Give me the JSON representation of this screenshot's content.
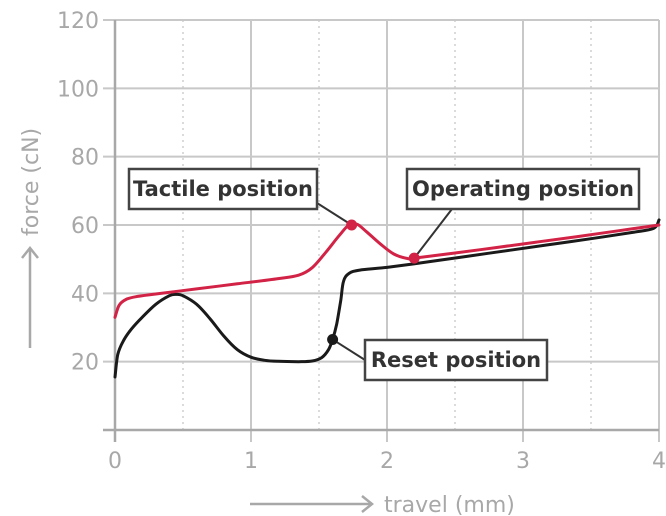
{
  "chart_data": {
    "type": "line",
    "xlabel": "travel (mm)",
    "ylabel": "force (cN)",
    "xlim": [
      0,
      4
    ],
    "ylim": [
      0,
      120
    ],
    "x_ticks": [
      0,
      1,
      2,
      3,
      4
    ],
    "y_ticks": [
      20,
      40,
      60,
      80,
      100,
      120
    ],
    "x_minor_grid": [
      0.5,
      1.5,
      2.5,
      3.5
    ],
    "grid": true,
    "legend": "none",
    "series": [
      {
        "id": "press",
        "color": "#d22346",
        "points": [
          [
            0.0,
            33
          ],
          [
            0.03,
            36.5
          ],
          [
            0.08,
            38.2
          ],
          [
            0.15,
            39
          ],
          [
            0.3,
            39.8
          ],
          [
            0.6,
            41.3
          ],
          [
            0.9,
            42.8
          ],
          [
            1.2,
            44.3
          ],
          [
            1.35,
            45.3
          ],
          [
            1.45,
            47.5
          ],
          [
            1.55,
            52
          ],
          [
            1.65,
            57
          ],
          [
            1.72,
            60
          ],
          [
            1.78,
            60.2
          ],
          [
            1.85,
            58
          ],
          [
            1.95,
            54.5
          ],
          [
            2.05,
            51.5
          ],
          [
            2.15,
            50.2
          ],
          [
            2.2,
            50.3
          ],
          [
            2.5,
            51.8
          ],
          [
            2.8,
            53.4
          ],
          [
            3.1,
            55
          ],
          [
            3.4,
            56.6
          ],
          [
            3.7,
            58.3
          ],
          [
            4.0,
            60
          ]
        ]
      },
      {
        "id": "release",
        "color": "#1a1a1a",
        "points": [
          [
            0.0,
            15.5
          ],
          [
            0.02,
            22
          ],
          [
            0.06,
            26
          ],
          [
            0.12,
            29.5
          ],
          [
            0.2,
            33
          ],
          [
            0.3,
            36.8
          ],
          [
            0.4,
            39.3
          ],
          [
            0.45,
            39.7
          ],
          [
            0.5,
            39.3
          ],
          [
            0.6,
            36.8
          ],
          [
            0.7,
            32.5
          ],
          [
            0.8,
            27.5
          ],
          [
            0.9,
            23.5
          ],
          [
            1.0,
            21.3
          ],
          [
            1.1,
            20.4
          ],
          [
            1.2,
            20.1
          ],
          [
            1.35,
            20
          ],
          [
            1.45,
            20.2
          ],
          [
            1.52,
            21.2
          ],
          [
            1.57,
            23.5
          ],
          [
            1.6,
            26.5
          ],
          [
            1.63,
            31
          ],
          [
            1.66,
            38
          ],
          [
            1.68,
            43.5
          ],
          [
            1.72,
            45.8
          ],
          [
            1.8,
            46.8
          ],
          [
            2.0,
            47.6
          ],
          [
            2.3,
            49.2
          ],
          [
            2.6,
            50.9
          ],
          [
            2.9,
            52.6
          ],
          [
            3.2,
            54.3
          ],
          [
            3.5,
            56
          ],
          [
            3.8,
            57.8
          ],
          [
            3.96,
            59
          ],
          [
            4.0,
            61.5
          ]
        ]
      }
    ],
    "markers": [
      {
        "series": "press",
        "x": 1.74,
        "y": 60,
        "color": "#d22346"
      },
      {
        "series": "press",
        "x": 2.2,
        "y": 50.3,
        "color": "#d22346"
      },
      {
        "series": "release",
        "x": 1.6,
        "y": 26.5,
        "color": "#1a1a1a"
      }
    ],
    "annotations": [
      {
        "name": "tactile-position-label",
        "text": "Tactile position",
        "target_series": "press",
        "target": [
          1.74,
          60
        ]
      },
      {
        "name": "operating-position-label",
        "text": "Operating position",
        "target_series": "press",
        "target": [
          2.2,
          50.3
        ]
      },
      {
        "name": "reset-position-label",
        "text": "Reset position",
        "target_series": "release",
        "target": [
          1.6,
          26.5
        ]
      }
    ]
  }
}
